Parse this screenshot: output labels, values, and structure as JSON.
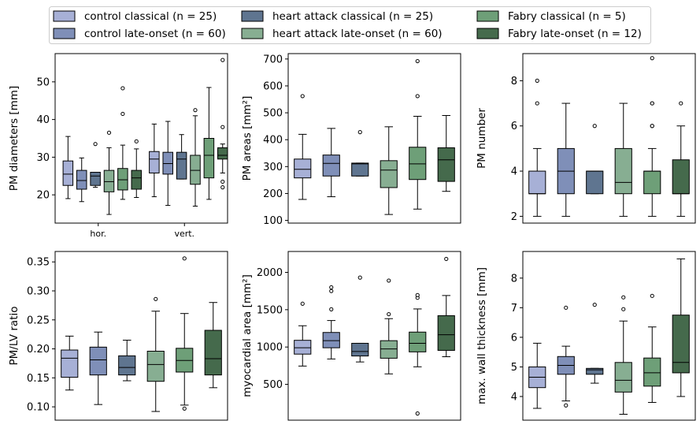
{
  "colors": [
    "#a7b0d6",
    "#7f8fb8",
    "#5f7590",
    "#87ae92",
    "#6e9f78",
    "#456a4c"
  ],
  "legend": {
    "items": [
      "control classical (n = 25)",
      "control late-onset (n = 60)",
      "heart attack classical (n = 25)",
      "heart attack late-onset (n = 60)",
      "Fabry classical (n = 5)",
      "Fabry late-onset (n = 12)"
    ],
    "placement": "top"
  },
  "chart_data": [
    {
      "type": "box",
      "ylabel": "PM diameters [mm]",
      "ylim": [
        12.5,
        57.5
      ],
      "yticks": [
        20,
        30,
        40,
        50
      ],
      "ytick_labels": [
        "20",
        "30",
        "40",
        "50"
      ],
      "groups": [
        "hor.",
        "vert."
      ],
      "series": [
        {
          "group": "hor.",
          "group_index": 0,
          "color_index": 0,
          "stats": {
            "whislo": 19,
            "q1": 22.5,
            "med": 25.5,
            "q3": 29,
            "whishi": 35.5
          },
          "fliers": []
        },
        {
          "group": "hor.",
          "group_index": 1,
          "color_index": 1,
          "stats": {
            "whislo": 18.2,
            "q1": 21.5,
            "med": 23.8,
            "q3": 26.5,
            "whishi": 29.8
          },
          "fliers": []
        },
        {
          "group": "hor.",
          "group_index": 2,
          "color_index": 2,
          "stats": {
            "whislo": 22,
            "q1": 22.5,
            "med": 25,
            "q3": 26,
            "whishi": 26
          },
          "fliers": [
            33.5
          ]
        },
        {
          "group": "hor.",
          "group_index": 3,
          "color_index": 3,
          "stats": {
            "whislo": 14.8,
            "q1": 20.8,
            "med": 23.5,
            "q3": 26.5,
            "whishi": 32.5
          },
          "fliers": [
            36.5
          ]
        },
        {
          "group": "hor.",
          "group_index": 4,
          "color_index": 4,
          "stats": {
            "whislo": 18.8,
            "q1": 21.3,
            "med": 24,
            "q3": 27,
            "whishi": 33.2
          },
          "fliers": [
            41.5,
            48.3
          ]
        },
        {
          "group": "hor.",
          "group_index": 5,
          "color_index": 5,
          "stats": {
            "whislo": 19.3,
            "q1": 21.5,
            "med": 24.5,
            "q3": 26.5,
            "whishi": 32.2
          },
          "fliers": [
            34.2
          ]
        },
        {
          "group": "vert.",
          "group_index": 0,
          "color_index": 0,
          "stats": {
            "whislo": 19.5,
            "q1": 25.8,
            "med": 29.5,
            "q3": 31.5,
            "whishi": 38.8
          },
          "fliers": []
        },
        {
          "group": "vert.",
          "group_index": 1,
          "color_index": 1,
          "stats": {
            "whislo": 17.2,
            "q1": 25.5,
            "med": 28.3,
            "q3": 31.3,
            "whishi": 39.5
          },
          "fliers": []
        },
        {
          "group": "vert.",
          "group_index": 2,
          "color_index": 2,
          "stats": {
            "whislo": 24.2,
            "q1": 24.2,
            "med": 29.5,
            "q3": 31.3,
            "whishi": 36
          },
          "fliers": []
        },
        {
          "group": "vert.",
          "group_index": 3,
          "color_index": 3,
          "stats": {
            "whislo": 17,
            "q1": 22.8,
            "med": 26.5,
            "q3": 30.5,
            "whishi": 41
          },
          "fliers": [
            42.5
          ]
        },
        {
          "group": "vert.",
          "group_index": 4,
          "color_index": 4,
          "stats": {
            "whislo": 18.8,
            "q1": 24.5,
            "med": 30.5,
            "q3": 35,
            "whishi": 48.5
          },
          "fliers": []
        },
        {
          "group": "vert.",
          "group_index": 5,
          "color_index": 5,
          "stats": {
            "whislo": 25.8,
            "q1": 29.5,
            "med": 30.5,
            "q3": 32.5,
            "whishi": 33.5
          },
          "fliers": [
            22,
            23.5,
            38,
            55.8
          ]
        }
      ]
    },
    {
      "type": "box",
      "ylabel": "PM areas [mm²]",
      "ylim": [
        90,
        720
      ],
      "yticks": [
        100,
        200,
        300,
        400,
        500,
        600,
        700
      ],
      "ytick_labels": [
        "100",
        "200",
        "300",
        "400",
        "500",
        "600",
        "700"
      ],
      "series": [
        {
          "color_index": 0,
          "stats": {
            "whislo": 178,
            "q1": 258,
            "med": 290,
            "q3": 328,
            "whishi": 420
          },
          "fliers": [
            562
          ]
        },
        {
          "color_index": 1,
          "stats": {
            "whislo": 188,
            "q1": 265,
            "med": 312,
            "q3": 343,
            "whishi": 442
          },
          "fliers": []
        },
        {
          "color_index": 2,
          "stats": {
            "whislo": 265,
            "q1": 265,
            "med": 310,
            "q3": 313,
            "whishi": 313
          },
          "fliers": [
            428
          ]
        },
        {
          "color_index": 3,
          "stats": {
            "whislo": 122,
            "q1": 222,
            "med": 287,
            "q3": 322,
            "whishi": 448
          },
          "fliers": []
        },
        {
          "color_index": 4,
          "stats": {
            "whislo": 142,
            "q1": 252,
            "med": 310,
            "q3": 372,
            "whishi": 487
          },
          "fliers": [
            562,
            692
          ]
        },
        {
          "color_index": 5,
          "stats": {
            "whislo": 208,
            "q1": 245,
            "med": 325,
            "q3": 370,
            "whishi": 490
          },
          "fliers": []
        }
      ]
    },
    {
      "type": "box",
      "ylabel": "PM number",
      "ylim": [
        1.7,
        9.2
      ],
      "yticks": [
        2,
        4,
        6,
        8
      ],
      "ytick_labels": [
        "2",
        "4",
        "6",
        "8"
      ],
      "series": [
        {
          "color_index": 0,
          "stats": {
            "whislo": 2,
            "q1": 3,
            "med": 3,
            "q3": 4,
            "whishi": 5
          },
          "fliers": [
            7,
            8
          ]
        },
        {
          "color_index": 1,
          "stats": {
            "whislo": 2,
            "q1": 3,
            "med": 4,
            "q3": 5,
            "whishi": 7
          },
          "fliers": []
        },
        {
          "color_index": 2,
          "stats": {
            "whislo": 3,
            "q1": 3,
            "med": 4,
            "q3": 4,
            "whishi": 4
          },
          "fliers": [
            6
          ]
        },
        {
          "color_index": 3,
          "stats": {
            "whislo": 2,
            "q1": 3,
            "med": 3.5,
            "q3": 5,
            "whishi": 7
          },
          "fliers": []
        },
        {
          "color_index": 4,
          "stats": {
            "whislo": 2,
            "q1": 3,
            "med": 4,
            "q3": 4,
            "whishi": 5
          },
          "fliers": [
            6,
            6,
            7,
            7,
            9
          ]
        },
        {
          "color_index": 5,
          "stats": {
            "whislo": 2,
            "q1": 3,
            "med": 3,
            "q3": 4.5,
            "whishi": 6
          },
          "fliers": [
            7
          ]
        }
      ]
    },
    {
      "type": "box",
      "ylabel": "PM/LV ratio",
      "ylim": [
        0.077,
        0.368
      ],
      "yticks": [
        0.1,
        0.15,
        0.2,
        0.25,
        0.3,
        0.35
      ],
      "ytick_labels": [
        "0.10",
        "0.15",
        "0.20",
        "0.25",
        "0.30",
        "0.35"
      ],
      "series": [
        {
          "color_index": 0,
          "stats": {
            "whislo": 0.129,
            "q1": 0.151,
            "med": 0.184,
            "q3": 0.198,
            "whishi": 0.222
          },
          "fliers": []
        },
        {
          "color_index": 1,
          "stats": {
            "whislo": 0.104,
            "q1": 0.155,
            "med": 0.181,
            "q3": 0.203,
            "whishi": 0.229
          },
          "fliers": []
        },
        {
          "color_index": 2,
          "stats": {
            "whislo": 0.145,
            "q1": 0.155,
            "med": 0.168,
            "q3": 0.188,
            "whishi": 0.215
          },
          "fliers": []
        },
        {
          "color_index": 3,
          "stats": {
            "whislo": 0.092,
            "q1": 0.144,
            "med": 0.173,
            "q3": 0.196,
            "whishi": 0.265
          },
          "fliers": [
            0.286
          ]
        },
        {
          "color_index": 4,
          "stats": {
            "whislo": 0.103,
            "q1": 0.16,
            "med": 0.18,
            "q3": 0.201,
            "whishi": 0.261
          },
          "fliers": [
            0.097,
            0.356
          ]
        },
        {
          "color_index": 5,
          "stats": {
            "whislo": 0.133,
            "q1": 0.155,
            "med": 0.183,
            "q3": 0.232,
            "whishi": 0.28
          },
          "fliers": []
        }
      ]
    },
    {
      "type": "box",
      "ylabel": "myocardial area [mm²]",
      "ylim": [
        20,
        2280
      ],
      "yticks": [
        500,
        1000,
        1500,
        2000
      ],
      "ytick_labels": [
        "500",
        "1000",
        "1500",
        "2000"
      ],
      "series": [
        {
          "color_index": 0,
          "stats": {
            "whislo": 745,
            "q1": 905,
            "med": 990,
            "q3": 1090,
            "whishi": 1285
          },
          "fliers": [
            1580
          ]
        },
        {
          "color_index": 1,
          "stats": {
            "whislo": 840,
            "q1": 990,
            "med": 1085,
            "q3": 1195,
            "whishi": 1355
          },
          "fliers": [
            1505,
            1750,
            1800
          ]
        },
        {
          "color_index": 2,
          "stats": {
            "whislo": 800,
            "q1": 880,
            "med": 940,
            "q3": 1050,
            "whishi": 1050
          },
          "fliers": [
            1930
          ]
        },
        {
          "color_index": 3,
          "stats": {
            "whislo": 640,
            "q1": 850,
            "med": 975,
            "q3": 1085,
            "whishi": 1380
          },
          "fliers": [
            1440,
            1890
          ]
        },
        {
          "color_index": 4,
          "stats": {
            "whislo": 735,
            "q1": 935,
            "med": 1050,
            "q3": 1200,
            "whishi": 1510
          },
          "fliers": [
            110,
            1660,
            1695
          ]
        },
        {
          "color_index": 5,
          "stats": {
            "whislo": 870,
            "q1": 955,
            "med": 1165,
            "q3": 1420,
            "whishi": 1690
          },
          "fliers": [
            2180
          ]
        }
      ]
    },
    {
      "type": "box",
      "ylabel": "max. wall thickness [mm]",
      "ylim": [
        3.2,
        8.9
      ],
      "yticks": [
        4,
        5,
        6,
        7,
        8
      ],
      "ytick_labels": [
        "4",
        "5",
        "6",
        "7",
        "8"
      ],
      "series": [
        {
          "color_index": 0,
          "stats": {
            "whislo": 3.6,
            "q1": 4.3,
            "med": 4.65,
            "q3": 5.0,
            "whishi": 5.8
          },
          "fliers": []
        },
        {
          "color_index": 1,
          "stats": {
            "whislo": 3.85,
            "q1": 4.75,
            "med": 5.05,
            "q3": 5.35,
            "whishi": 5.7
          },
          "fliers": [
            3.7,
            7.0
          ]
        },
        {
          "color_index": 2,
          "stats": {
            "whislo": 4.45,
            "q1": 4.75,
            "med": 4.9,
            "q3": 4.95,
            "whishi": 4.95
          },
          "fliers": [
            7.1
          ]
        },
        {
          "color_index": 3,
          "stats": {
            "whislo": 3.4,
            "q1": 4.15,
            "med": 4.55,
            "q3": 5.15,
            "whishi": 6.55
          },
          "fliers": [
            6.95,
            7.35
          ]
        },
        {
          "color_index": 4,
          "stats": {
            "whislo": 3.8,
            "q1": 4.35,
            "med": 4.8,
            "q3": 5.3,
            "whishi": 6.35
          },
          "fliers": [
            7.4
          ]
        },
        {
          "color_index": 5,
          "stats": {
            "whislo": 4.0,
            "q1": 4.8,
            "med": 5.15,
            "q3": 6.75,
            "whishi": 8.65
          },
          "fliers": []
        }
      ]
    }
  ]
}
